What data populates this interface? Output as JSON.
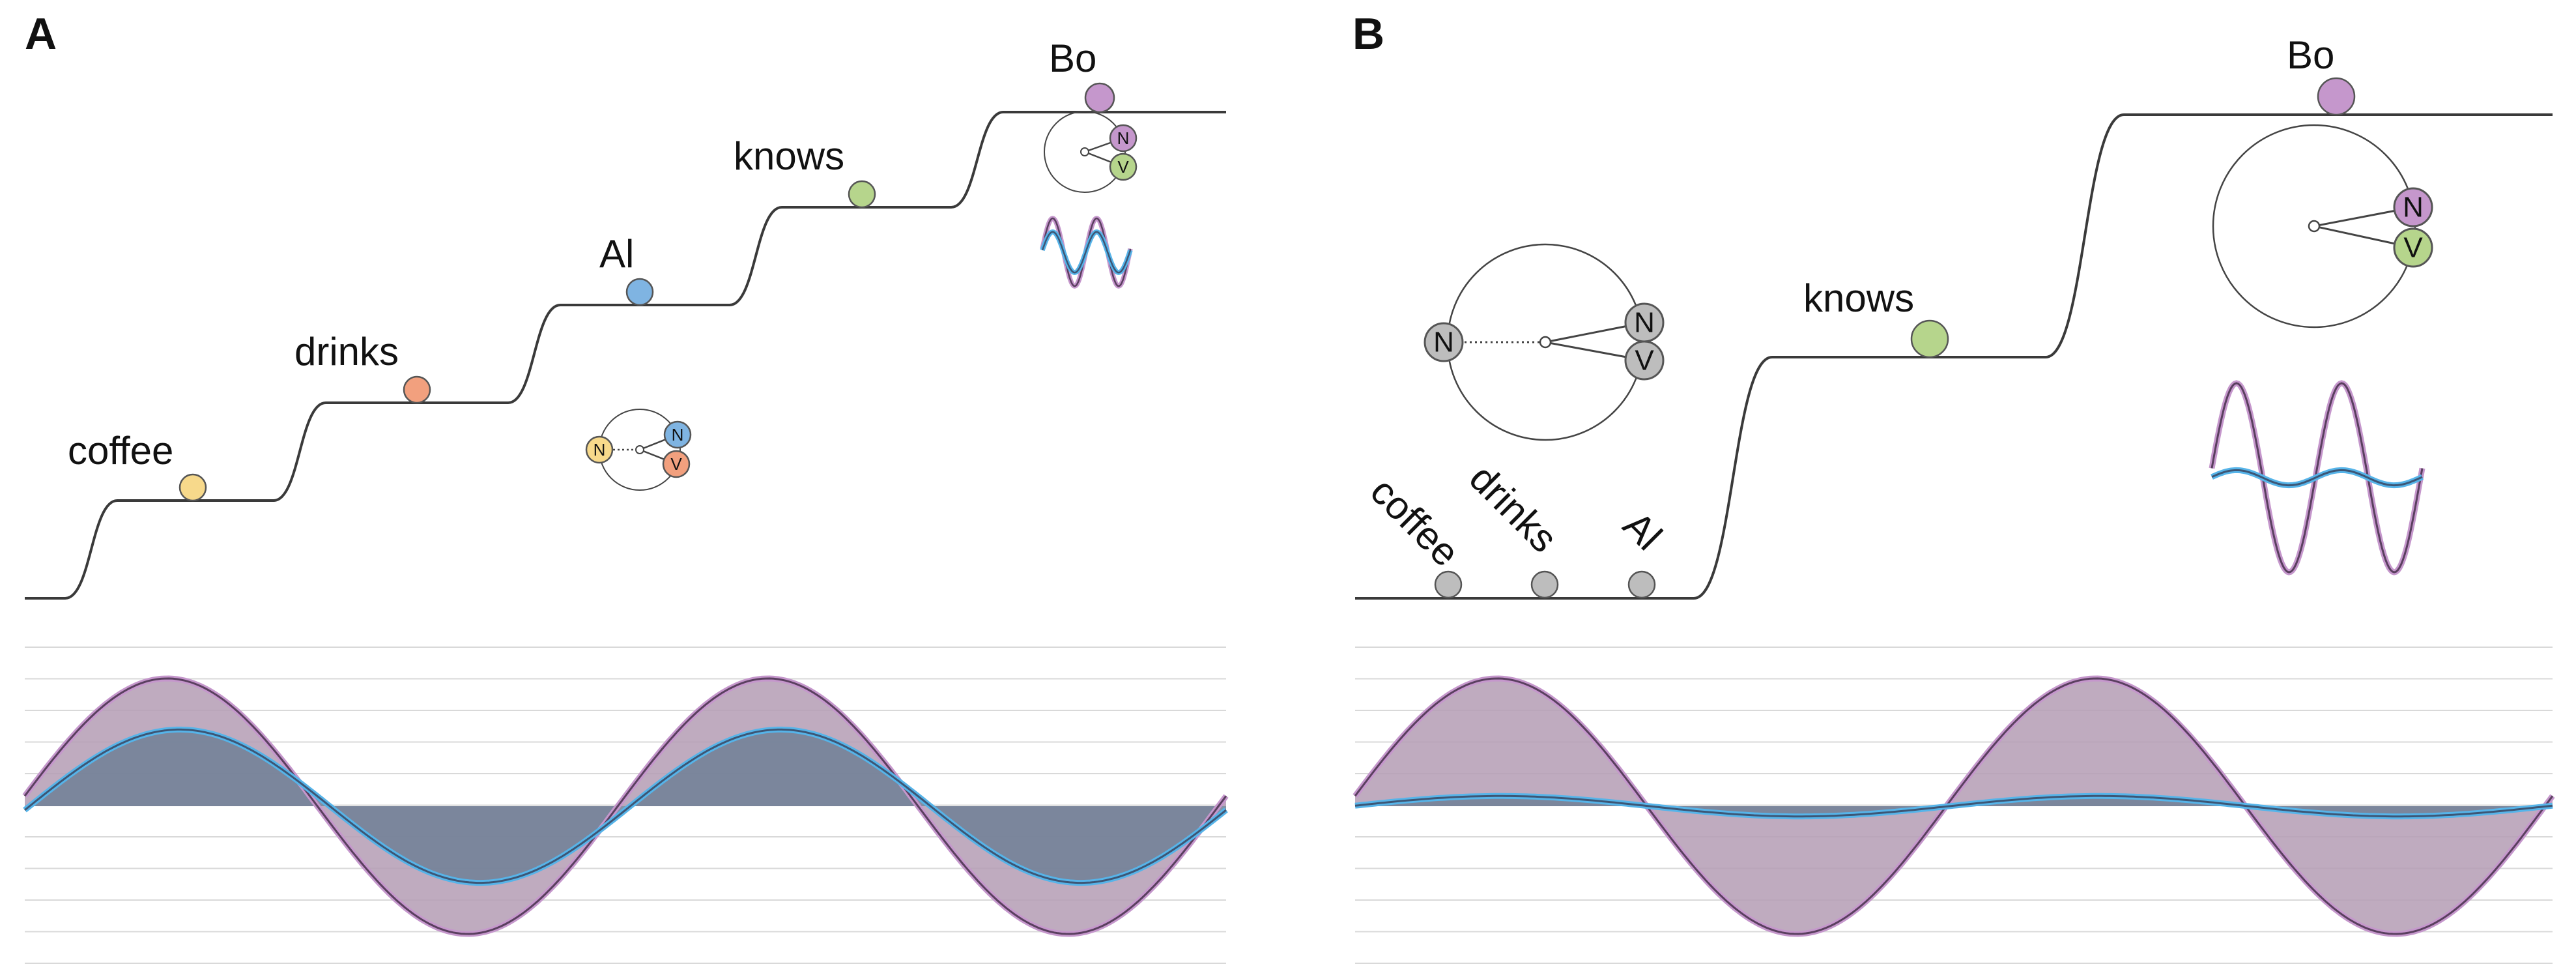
{
  "figure": {
    "panels": [
      {
        "id": "A",
        "label": "A",
        "words": [
          {
            "text": "coffee",
            "color": "#f7d98b",
            "level": 1
          },
          {
            "text": "drinks",
            "color": "#f2a07e",
            "level": 2
          },
          {
            "text": "Al",
            "color": "#7fb4e2",
            "level": 3
          },
          {
            "text": "knows",
            "color": "#b6d58c",
            "level": 4
          },
          {
            "text": "Bo",
            "color": "#c597cc",
            "level": 5
          }
        ],
        "phase_diagrams": [
          {
            "after_word": "Al",
            "labels": [
              "N",
              "N",
              "V"
            ],
            "colors": [
              "#f7d98b",
              "#7fb4e2",
              "#f2a07e"
            ]
          },
          {
            "after_word": "Bo",
            "labels": [
              "N",
              "V"
            ],
            "colors": [
              "#c597cc",
              "#b6d58c"
            ]
          }
        ],
        "wave": {
          "purple_amplitude": 1.0,
          "blue_amplitude": 0.6,
          "cycles": 2
        }
      },
      {
        "id": "B",
        "label": "B",
        "words": [
          {
            "text": "coffee",
            "color": "#bdbdbd",
            "level": 0
          },
          {
            "text": "drinks",
            "color": "#bdbdbd",
            "level": 0
          },
          {
            "text": "Al",
            "color": "#bdbdbd",
            "level": 0
          },
          {
            "text": "knows",
            "color": "#b6d58c",
            "level": 1
          },
          {
            "text": "Bo",
            "color": "#c597cc",
            "level": 2
          }
        ],
        "phase_diagrams": [
          {
            "after_word": "Al",
            "labels": [
              "N",
              "N",
              "V"
            ],
            "colors": [
              "#bdbdbd",
              "#bdbdbd",
              "#bdbdbd"
            ]
          },
          {
            "after_word": "Bo",
            "labels": [
              "N",
              "V"
            ],
            "colors": [
              "#c597cc",
              "#b6d58c"
            ]
          }
        ],
        "wave": {
          "purple_amplitude": 1.0,
          "blue_amplitude": 0.08,
          "cycles": 2
        }
      }
    ],
    "colors": {
      "purple": "#c597cc",
      "purple_dark": "#5a3f5f",
      "blue": "#56b4e9",
      "blue_dark": "#3d5675",
      "fill_purple": "#b49cb4",
      "fill_blue": "#6f7f95"
    }
  }
}
